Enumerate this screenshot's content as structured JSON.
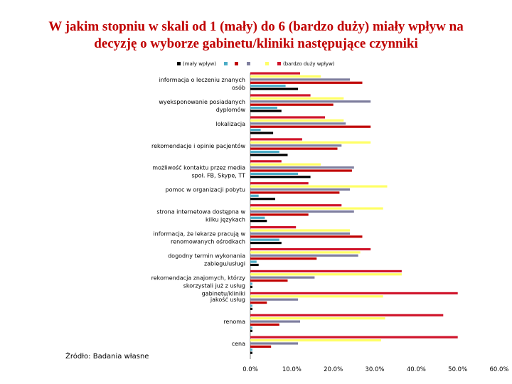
{
  "title_line1": "W jakim stopniu w skali od 1 (mały) do 6 (bardzo duży) miały wpływ na",
  "title_line2": "decyzję o wyborze gabinetu/kliniki następujące czynniki",
  "source": "Źródło: Badania własne",
  "chart_data": {
    "type": "bar",
    "orientation": "horizontal",
    "categories": [
      "informacja o leczeniu znanych osób",
      "wyeksponowanie posiadanych dyplomów",
      "lokalizacja",
      "rekomendacje i opinie pacjentów",
      "możliwość kontaktu przez media społ. FB, Skype, TT",
      "pomoc w organizacji pobytu",
      "strona internetowa dostępna w kilku językach",
      "informacja, że lekarze pracują w renomowanych ośrodkach",
      "dogodny termin wykonania zabiegu/usługi",
      "rekomendacja znajomych, którzy skorzystali już z usług gabinetu/kliniki",
      "jakość usług",
      "renoma",
      "cena"
    ],
    "series": [
      {
        "name": "(mały wpływ)",
        "color": "#000000",
        "values": [
          11.5,
          7.5,
          5.5,
          9,
          14.5,
          6,
          4,
          7.5,
          2,
          0.5,
          0.5,
          0.5,
          0.5
        ]
      },
      {
        "name": "",
        "color": "#4bacc6",
        "values": [
          8.5,
          6.5,
          2.5,
          7,
          11.5,
          2,
          3.5,
          7,
          1.5,
          0.5,
          0.5,
          0.5,
          0.5
        ]
      },
      {
        "name": "",
        "color": "#c00000",
        "values": [
          27,
          20,
          29,
          21,
          24.5,
          21.5,
          14,
          27,
          16,
          9,
          4,
          7,
          5
        ]
      },
      {
        "name": "",
        "color": "#7f7f9f",
        "values": [
          24,
          29,
          23,
          22,
          25,
          24,
          25,
          24,
          26,
          15.5,
          11.5,
          12,
          11.5
        ]
      },
      {
        "name": "",
        "color": "#ffff66",
        "values": [
          17,
          22.5,
          22.5,
          29,
          17,
          33,
          32,
          24,
          26.5,
          36.5,
          32,
          32.5,
          31.5
        ]
      },
      {
        "name": "(bardzo duży wpływ)",
        "color": "#d0152b",
        "values": [
          12,
          14.5,
          18,
          12.5,
          7.5,
          14,
          22,
          11,
          29,
          36.5,
          50,
          46.5,
          50
        ]
      }
    ],
    "xlim": [
      0,
      60
    ],
    "xticks": [
      "0.0%",
      "10.0%",
      "20.0%",
      "30.0%",
      "40.0%",
      "50.0%",
      "60.0%"
    ],
    "legend_position": "top",
    "grid": false
  }
}
